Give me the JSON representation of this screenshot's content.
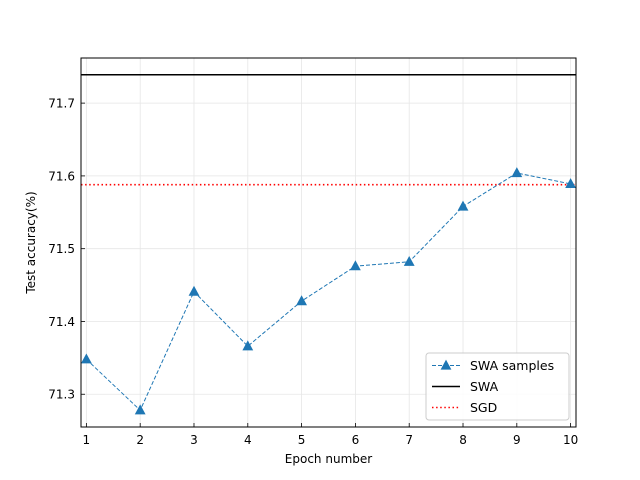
{
  "chart_data": {
    "type": "line",
    "xlabel": "Epoch number",
    "ylabel": "Test accuracy(%)",
    "x": [
      1,
      2,
      3,
      4,
      5,
      6,
      7,
      8,
      9,
      10
    ],
    "xlim": [
      0.9,
      10.1
    ],
    "ylim": [
      71.255,
      71.762
    ],
    "xticks": [
      1,
      2,
      3,
      4,
      5,
      6,
      7,
      8,
      9,
      10
    ],
    "yticks": [
      71.3,
      71.4,
      71.5,
      71.6,
      71.7
    ],
    "ytick_labels": [
      "71.3",
      "71.4",
      "71.5",
      "71.6",
      "71.7"
    ],
    "grid": true,
    "legend_position": "lower-right",
    "series": [
      {
        "name": "SWA samples",
        "style": "dashed-triangle-markers",
        "color": "#1f77b4",
        "values": [
          71.348,
          71.278,
          71.441,
          71.366,
          71.428,
          71.476,
          71.482,
          71.558,
          71.604,
          71.589
        ]
      },
      {
        "name": "SWA",
        "style": "solid-horizontal",
        "color": "#000000",
        "value": 71.739
      },
      {
        "name": "SGD",
        "style": "dotted-horizontal",
        "color": "#ff0000",
        "value": 71.588
      }
    ]
  }
}
